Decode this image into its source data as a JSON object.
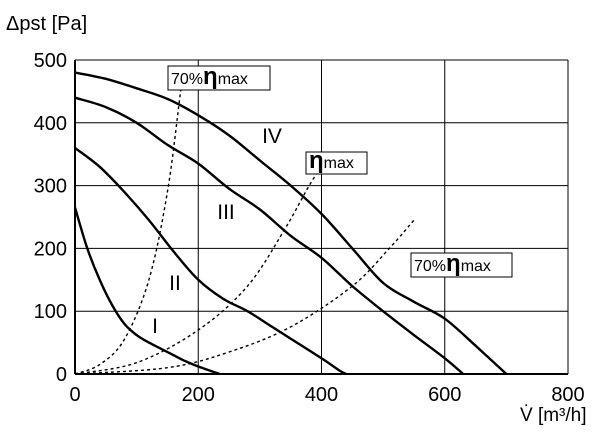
{
  "chart_data": {
    "type": "line",
    "xlabel": "V̇ [m³/h]",
    "ylabel": "Δpst [Pa]",
    "xlim": [
      0,
      800
    ],
    "ylim": [
      0,
      500
    ],
    "xticks": [
      0,
      200,
      400,
      600,
      800
    ],
    "yticks": [
      0,
      100,
      200,
      300,
      400,
      500
    ],
    "grid": true,
    "series": [
      {
        "name": "I",
        "points": [
          [
            0,
            265
          ],
          [
            20,
            200
          ],
          [
            40,
            150
          ],
          [
            60,
            110
          ],
          [
            80,
            80
          ],
          [
            100,
            62
          ],
          [
            120,
            50
          ],
          [
            140,
            40
          ],
          [
            160,
            30
          ],
          [
            180,
            20
          ],
          [
            200,
            12
          ],
          [
            220,
            5
          ],
          [
            235,
            0
          ]
        ]
      },
      {
        "name": "II",
        "points": [
          [
            0,
            360
          ],
          [
            40,
            330
          ],
          [
            80,
            290
          ],
          [
            120,
            245
          ],
          [
            160,
            195
          ],
          [
            200,
            150
          ],
          [
            240,
            120
          ],
          [
            280,
            100
          ],
          [
            320,
            75
          ],
          [
            360,
            50
          ],
          [
            400,
            25
          ],
          [
            430,
            5
          ],
          [
            440,
            0
          ]
        ]
      },
      {
        "name": "III",
        "points": [
          [
            0,
            440
          ],
          [
            50,
            425
          ],
          [
            100,
            400
          ],
          [
            150,
            365
          ],
          [
            200,
            335
          ],
          [
            250,
            295
          ],
          [
            300,
            262
          ],
          [
            350,
            220
          ],
          [
            400,
            185
          ],
          [
            450,
            140
          ],
          [
            500,
            100
          ],
          [
            550,
            62
          ],
          [
            600,
            25
          ],
          [
            630,
            0
          ]
        ]
      },
      {
        "name": "IV",
        "points": [
          [
            0,
            480
          ],
          [
            50,
            470
          ],
          [
            100,
            455
          ],
          [
            150,
            438
          ],
          [
            200,
            412
          ],
          [
            250,
            380
          ],
          [
            300,
            340
          ],
          [
            350,
            300
          ],
          [
            400,
            255
          ],
          [
            450,
            200
          ],
          [
            500,
            145
          ],
          [
            550,
            115
          ],
          [
            600,
            88
          ],
          [
            650,
            45
          ],
          [
            700,
            0
          ]
        ]
      }
    ],
    "system_curves": [
      {
        "name": "70% ηmax",
        "points": [
          [
            0,
            0
          ],
          [
            40,
            15
          ],
          [
            80,
            55
          ],
          [
            120,
            150
          ],
          [
            150,
            290
          ],
          [
            170,
            440
          ],
          [
            175,
            480
          ]
        ]
      },
      {
        "name": "ηmax",
        "points": [
          [
            0,
            0
          ],
          [
            100,
            18
          ],
          [
            200,
            70
          ],
          [
            280,
            140
          ],
          [
            340,
            230
          ],
          [
            380,
            300
          ],
          [
            400,
            330
          ]
        ]
      },
      {
        "name": "70% ηmax",
        "points": [
          [
            0,
            0
          ],
          [
            150,
            10
          ],
          [
            250,
            35
          ],
          [
            350,
            75
          ],
          [
            450,
            140
          ],
          [
            510,
            200
          ],
          [
            550,
            245
          ]
        ]
      }
    ],
    "curve_labels": [
      "I",
      "II",
      "III",
      "IV"
    ],
    "annotations": [
      {
        "prefix": "70%",
        "symbol": "η",
        "suffix": "max"
      },
      {
        "prefix": "",
        "symbol": "η",
        "suffix": "max"
      },
      {
        "prefix": "70%",
        "symbol": "η",
        "suffix": "max"
      }
    ]
  },
  "colors": {
    "line": "#000000",
    "grid": "#000000",
    "background": "#ffffff"
  }
}
